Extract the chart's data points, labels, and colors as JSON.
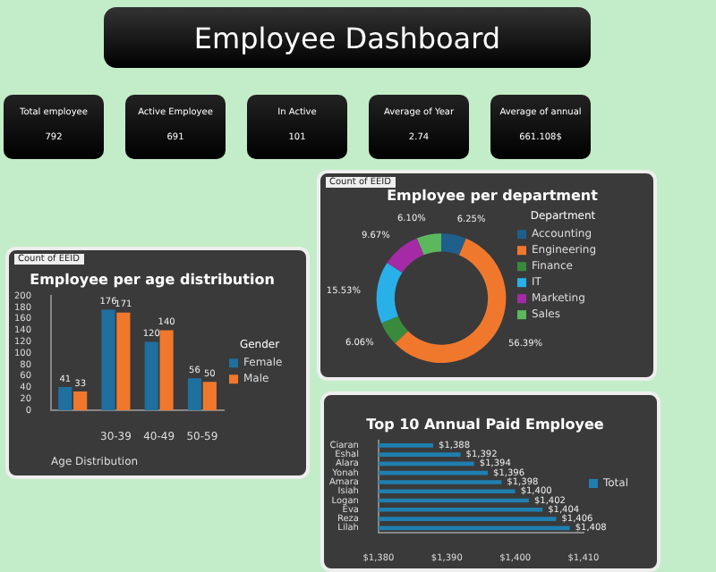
{
  "chart_data": [
    {
      "type": "other",
      "title": "Employee Dashboard",
      "annotations": [
        "Total employee",
        "792",
        "Active Employee",
        "691",
        "In Active",
        "101",
        "Average of Year",
        "2.74",
        "Average of annual",
        "661.108$"
      ]
    },
    {
      "type": "bar",
      "title": "Employee per age distribution",
      "xlabel": "Age Distribution",
      "legend_title": "Gender",
      "categories": [
        null,
        "30-39",
        "40-49",
        "50-59"
      ],
      "series": [
        {
          "name": "Female",
          "color": "#1f6f9f",
          "values": [
            41,
            176,
            120,
            56
          ]
        },
        {
          "name": "Male",
          "color": "#f0782c",
          "values": [
            33,
            171,
            140,
            50
          ]
        }
      ],
      "ylim": [
        0,
        200
      ],
      "yticks": [
        0,
        20,
        40,
        60,
        80,
        100,
        120,
        140,
        160,
        180,
        200
      ],
      "data_labels": true,
      "legend": "right",
      "annotations": [
        "Count of EEID"
      ]
    },
    {
      "type": "donut",
      "title": "Employee per department",
      "legend_title": "Department",
      "categories": [
        "Accounting",
        "Engineering",
        "Finance",
        "IT",
        "Marketing",
        "Sales"
      ],
      "values": [
        6.25,
        56.39,
        6.06,
        15.53,
        9.67,
        6.1
      ],
      "colors": [
        "#1f5f8b",
        "#f0782c",
        "#3a8a3e",
        "#2ab0e8",
        "#a52aa5",
        "#5cb85c"
      ],
      "value_labels": [
        "6.25%",
        "56.39%",
        "6.06%",
        "15.53%",
        "9.67%",
        "6.10%"
      ],
      "legend": "right",
      "annotations": [
        "Count of EEID"
      ]
    },
    {
      "type": "bar",
      "orientation": "horizontal",
      "title": "Top 10 Annual Paid Employee",
      "categories": [
        "Ciaran",
        "Eshal",
        "Alara",
        "Yonah",
        "Amara",
        "Isiah",
        "Logan",
        "Eva",
        "Reza",
        "Lilah"
      ],
      "series": [
        {
          "name": "Total",
          "color": "#1f7fb0",
          "values": [
            1388,
            1392,
            1394,
            1396,
            1398,
            1400,
            1402,
            1404,
            1406,
            1408
          ]
        }
      ],
      "value_labels": [
        "$1,388",
        "$1,392",
        "$1,394",
        "$1,396",
        "$1,398",
        "$1,400",
        "$1,402",
        "$1,404",
        "$1,406",
        "$1,408"
      ],
      "xlim": [
        1380,
        1410
      ],
      "xticks": [
        {
          "value": 1380,
          "label": "$1,380"
        },
        {
          "value": 1390,
          "label": "$1,390"
        },
        {
          "value": 1400,
          "label": "$1,400"
        },
        {
          "value": 1410,
          "label": "$1,410"
        }
      ],
      "legend": "right"
    }
  ]
}
